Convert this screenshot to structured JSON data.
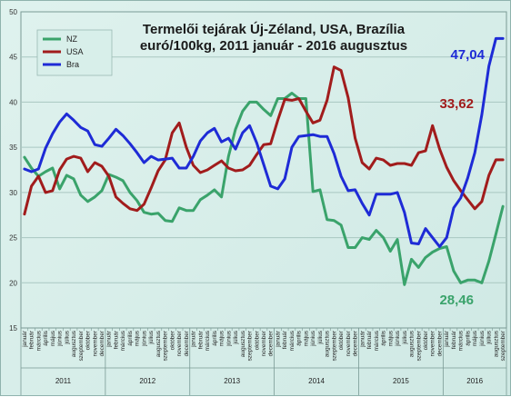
{
  "chart_data": {
    "type": "line",
    "title_lines": [
      "Termelői tejárak Új-Zéland, USA, Brazília",
      "euró/100kg, 2011 január - 2016 augusztus"
    ],
    "ylim": [
      15,
      50
    ],
    "yticks": [
      15,
      20,
      25,
      30,
      35,
      40,
      45,
      50
    ],
    "grid": true,
    "legend_position": "top-left",
    "month_labels": [
      "január",
      "március",
      "május",
      "július",
      "szeptember",
      "november"
    ],
    "month_labels_full": [
      "január",
      "február",
      "március",
      "április",
      "május",
      "június",
      "július",
      "augusztus",
      "szeptember",
      "október",
      "november",
      "december"
    ],
    "years": [
      "2011",
      "2012",
      "2013",
      "2014",
      "2015",
      "2016"
    ],
    "series": [
      {
        "name": "NZ",
        "color": "#3aa36b",
        "end_label": "28,46",
        "values": [
          33.9,
          32.7,
          31.8,
          32.3,
          32.7,
          30.4,
          31.9,
          31.5,
          29.7,
          29.0,
          29.5,
          30.2,
          32.0,
          31.7,
          31.3,
          30.0,
          29.1,
          27.8,
          27.6,
          27.7,
          26.9,
          26.8,
          28.3,
          28.0,
          28.0,
          29.2,
          29.7,
          30.3,
          29.5,
          34.0,
          37.0,
          39.0,
          40.0,
          40.0,
          39.2,
          38.5,
          40.4,
          40.4,
          41.0,
          40.4,
          40.4,
          30.1,
          30.3,
          27.0,
          26.9,
          26.4,
          23.9,
          23.9,
          25.0,
          24.8,
          25.8,
          25.0,
          23.5,
          24.8,
          19.8,
          22.6,
          21.7,
          22.8,
          23.4,
          23.8,
          24.0,
          21.3,
          20.0,
          20.3,
          20.3,
          20.0,
          22.4,
          25.4,
          28.46
        ]
      },
      {
        "name": "USA",
        "color": "#a11c1c",
        "end_label": "33,62",
        "values": [
          27.6,
          30.7,
          31.8,
          30.0,
          30.2,
          32.5,
          33.7,
          34.0,
          33.8,
          32.3,
          33.3,
          32.9,
          31.8,
          29.5,
          28.8,
          28.2,
          28.0,
          28.7,
          30.5,
          32.4,
          33.6,
          36.6,
          37.7,
          35.0,
          33.0,
          32.2,
          32.5,
          33.0,
          33.5,
          32.7,
          32.4,
          32.5,
          33.0,
          34.2,
          35.3,
          35.4,
          38.0,
          40.3,
          40.2,
          40.4,
          39.0,
          37.7,
          38.0,
          40.2,
          43.9,
          43.5,
          40.5,
          36.0,
          33.3,
          32.6,
          33.8,
          33.6,
          33.0,
          33.2,
          33.2,
          33.0,
          34.4,
          34.6,
          37.4,
          34.8,
          32.8,
          31.3,
          30.2,
          29.2,
          28.2,
          29.0,
          31.9,
          33.62,
          33.62
        ]
      },
      {
        "name": "Bra",
        "color": "#1e2bd6",
        "end_label": "47,04",
        "values": [
          32.6,
          32.3,
          32.6,
          34.9,
          36.5,
          37.8,
          38.7,
          38.0,
          37.2,
          36.8,
          35.3,
          35.1,
          36.0,
          37.0,
          36.3,
          35.4,
          34.4,
          33.3,
          34.0,
          33.6,
          33.7,
          33.8,
          32.7,
          32.7,
          34.0,
          35.7,
          36.6,
          37.1,
          35.6,
          36.0,
          34.8,
          36.6,
          37.4,
          35.5,
          33.1,
          30.7,
          30.4,
          31.5,
          35.0,
          36.2,
          36.3,
          36.4,
          36.2,
          36.2,
          34.3,
          31.8,
          30.2,
          30.3,
          28.8,
          27.5,
          29.8,
          29.8,
          29.8,
          30.0,
          27.8,
          24.4,
          24.3,
          26.0,
          25.0,
          24.0,
          25.0,
          28.3,
          29.4,
          31.6,
          34.4,
          38.6,
          44.0,
          47.04,
          47.04
        ]
      }
    ]
  }
}
